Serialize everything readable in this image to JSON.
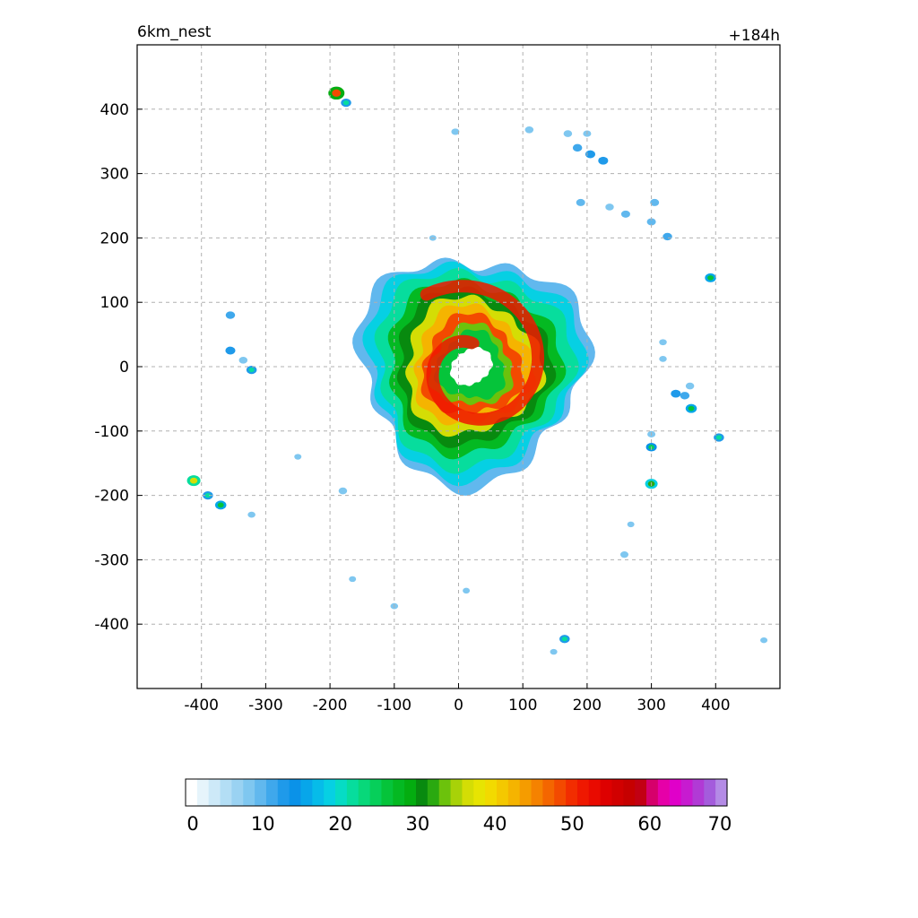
{
  "header": {
    "title_left": "6km_nest",
    "title_right": "+184h"
  },
  "chart_data": {
    "type": "heatmap",
    "title": "6km_nest",
    "subtitle": "+184h",
    "xlabel": "",
    "ylabel": "",
    "xlim": [
      -500,
      500
    ],
    "ylim": [
      -500,
      500
    ],
    "x_ticks": [
      -400,
      -300,
      -200,
      -100,
      0,
      100,
      200,
      300,
      400
    ],
    "y_ticks": [
      400,
      300,
      200,
      100,
      0,
      -100,
      -200,
      -300,
      -400
    ],
    "grid": true,
    "colorbar": {
      "min": 0,
      "max": 70,
      "ticks": [
        0,
        10,
        20,
        30,
        40,
        50,
        60,
        70
      ],
      "colors": [
        "#ffffff",
        "#e6f4fb",
        "#cde9f8",
        "#b3def5",
        "#9ad2f2",
        "#7fc7f0",
        "#61b8ee",
        "#3fa8ec",
        "#1f9aea",
        "#0a92e8",
        "#07a6ea",
        "#06bce9",
        "#06d0e3",
        "#06dcc5",
        "#07dd9d",
        "#08d87a",
        "#06cf5a",
        "#05c43a",
        "#04b922",
        "#04ad10",
        "#088a0f",
        "#2aa910",
        "#6cc20c",
        "#a8d208",
        "#d4dd05",
        "#e7e402",
        "#f2da00",
        "#f4c800",
        "#f5b400",
        "#f59c00",
        "#f58200",
        "#f46600",
        "#f34a00",
        "#f22d00",
        "#ef1800",
        "#e90a00",
        "#de0000",
        "#d10000",
        "#c60000",
        "#c20013",
        "#d6006b",
        "#e600a8",
        "#e000c9",
        "#c71bd0",
        "#b13ad5",
        "#a45cdc",
        "#b48be6"
      ]
    },
    "storm": {
      "eye_center": [
        20,
        0
      ],
      "eye_radius": 30,
      "outer_radius": 175,
      "max_value": 52
    },
    "cells": [
      {
        "x": -190,
        "y": 425,
        "v": 48
      },
      {
        "x": -175,
        "y": 410,
        "v": 22
      },
      {
        "x": -5,
        "y": 365,
        "v": 12
      },
      {
        "x": 110,
        "y": 368,
        "v": 14
      },
      {
        "x": 170,
        "y": 362,
        "v": 14
      },
      {
        "x": 200,
        "y": 362,
        "v": 12
      },
      {
        "x": 185,
        "y": 340,
        "v": 18
      },
      {
        "x": 205,
        "y": 330,
        "v": 20
      },
      {
        "x": 225,
        "y": 320,
        "v": 20
      },
      {
        "x": 190,
        "y": 255,
        "v": 16
      },
      {
        "x": 235,
        "y": 248,
        "v": 14
      },
      {
        "x": 260,
        "y": 237,
        "v": 16
      },
      {
        "x": 305,
        "y": 255,
        "v": 16
      },
      {
        "x": 300,
        "y": 225,
        "v": 16
      },
      {
        "x": 325,
        "y": 202,
        "v": 18
      },
      {
        "x": 392,
        "y": 138,
        "v": 26
      },
      {
        "x": -355,
        "y": 80,
        "v": 18
      },
      {
        "x": -355,
        "y": 25,
        "v": 20
      },
      {
        "x": -335,
        "y": 10,
        "v": 14
      },
      {
        "x": -322,
        "y": -5,
        "v": 22
      },
      {
        "x": 318,
        "y": 38,
        "v": 10
      },
      {
        "x": 318,
        "y": 12,
        "v": 10
      },
      {
        "x": 338,
        "y": -42,
        "v": 20
      },
      {
        "x": 352,
        "y": -45,
        "v": 18
      },
      {
        "x": 360,
        "y": -30,
        "v": 14
      },
      {
        "x": 362,
        "y": -65,
        "v": 26
      },
      {
        "x": 300,
        "y": -105,
        "v": 12
      },
      {
        "x": 300,
        "y": -125,
        "v": 24
      },
      {
        "x": 405,
        "y": -110,
        "v": 22
      },
      {
        "x": 300,
        "y": -182,
        "v": 32
      },
      {
        "x": -412,
        "y": -177,
        "v": 36
      },
      {
        "x": -390,
        "y": -200,
        "v": 22
      },
      {
        "x": -370,
        "y": -215,
        "v": 26
      },
      {
        "x": -322,
        "y": -230,
        "v": 10
      },
      {
        "x": -250,
        "y": -140,
        "v": 8
      },
      {
        "x": -180,
        "y": -193,
        "v": 14
      },
      {
        "x": -165,
        "y": -330,
        "v": 8
      },
      {
        "x": -100,
        "y": -372,
        "v": 10
      },
      {
        "x": 12,
        "y": -348,
        "v": 8
      },
      {
        "x": 258,
        "y": -292,
        "v": 12
      },
      {
        "x": 268,
        "y": -245,
        "v": 8
      },
      {
        "x": 165,
        "y": -423,
        "v": 22
      },
      {
        "x": 148,
        "y": -443,
        "v": 8
      },
      {
        "x": 475,
        "y": -425,
        "v": 8
      },
      {
        "x": -40,
        "y": 200,
        "v": 8
      }
    ]
  }
}
